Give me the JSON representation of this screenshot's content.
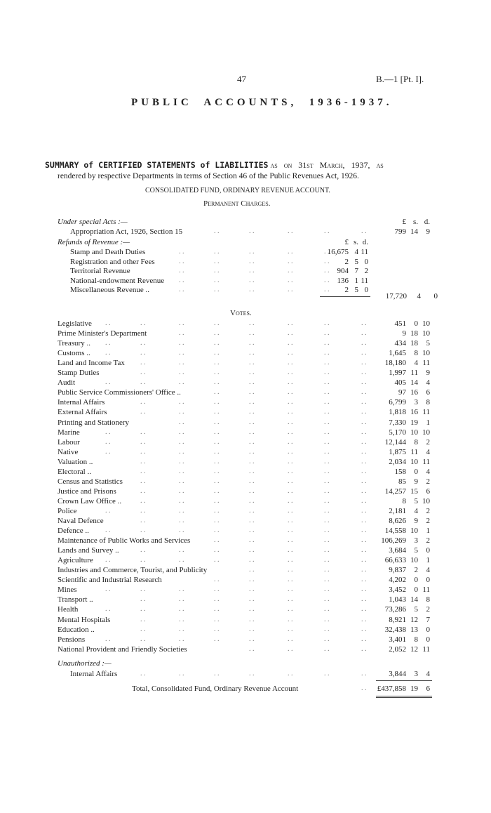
{
  "page_number": "47",
  "ref": "B.—1 [Pt. I].",
  "title": "PUBLIC  ACCOUNTS,  1936-1937.",
  "summary_bold": "SUMMARY of CERTIFIED STATEMENTS of LIABILITIES",
  "summary_rest": "as on 31st March, 1937, as",
  "summary_line2": "rendered by respective Departments in terms of Section 46 of the Public Revenues Act, 1926.",
  "fund_heading": "CONSOLIDATED FUND, ORDINARY REVENUE ACCOUNT.",
  "permanent_heading": "Permanent Charges.",
  "currency_header": {
    "pounds": "£",
    "shillings": "s.",
    "pence": "d."
  },
  "special_acts": {
    "heading": "Under special Acts :—",
    "items": [
      {
        "label": "Appropriation Act, 1926, Section 15",
        "amount": [
          "799",
          "14",
          "9"
        ]
      }
    ]
  },
  "refunds": {
    "heading": "Refunds of Revenue :—",
    "items": [
      {
        "label": "Stamp and Death Duties",
        "amount": [
          "16,675",
          "4",
          "11"
        ]
      },
      {
        "label": "Registration and other Fees",
        "amount": [
          "2",
          "5",
          "0"
        ]
      },
      {
        "label": "Territorial Revenue",
        "amount": [
          "904",
          "7",
          "2"
        ]
      },
      {
        "label": "National-endowment Revenue",
        "amount": [
          "136",
          "1",
          "11"
        ]
      },
      {
        "label": "Miscellaneous Revenue ..",
        "amount": [
          "2",
          "5",
          "0"
        ]
      }
    ],
    "total": [
      "17,720",
      "4",
      "0"
    ]
  },
  "votes": {
    "heading": "Votes.",
    "items": [
      {
        "label": "Legislative",
        "amount": [
          "451",
          "0",
          "10"
        ]
      },
      {
        "label": "Prime Minister's Department",
        "amount": [
          "9",
          "18",
          "10"
        ]
      },
      {
        "label": "Treasury ..",
        "amount": [
          "434",
          "18",
          "5"
        ]
      },
      {
        "label": "Customs ..",
        "amount": [
          "1,645",
          "8",
          "10"
        ]
      },
      {
        "label": "Land and Income Tax",
        "amount": [
          "18,180",
          "4",
          "11"
        ]
      },
      {
        "label": "Stamp Duties",
        "amount": [
          "1,997",
          "11",
          "9"
        ]
      },
      {
        "label": "Audit",
        "amount": [
          "405",
          "14",
          "4"
        ]
      },
      {
        "label": "Public Service Commissioners' Office ..",
        "amount": [
          "97",
          "16",
          "6"
        ]
      },
      {
        "label": "Internal Affairs",
        "amount": [
          "6,799",
          "3",
          "8"
        ]
      },
      {
        "label": "External Affairs",
        "amount": [
          "1,818",
          "16",
          "11"
        ]
      },
      {
        "label": "Printing and Stationery",
        "amount": [
          "7,330",
          "19",
          "1"
        ]
      },
      {
        "label": "Marine",
        "amount": [
          "5,170",
          "10",
          "10"
        ]
      },
      {
        "label": "Labour",
        "amount": [
          "12,144",
          "8",
          "2"
        ]
      },
      {
        "label": "Native",
        "amount": [
          "1,875",
          "11",
          "4"
        ]
      },
      {
        "label": "Valuation ..",
        "amount": [
          "2,034",
          "10",
          "11"
        ]
      },
      {
        "label": "Electoral ..",
        "amount": [
          "158",
          "0",
          "4"
        ]
      },
      {
        "label": "Census and Statistics",
        "amount": [
          "85",
          "9",
          "2"
        ]
      },
      {
        "label": "Justice and Prisons",
        "amount": [
          "14,257",
          "15",
          "6"
        ]
      },
      {
        "label": "Crown Law Office ..",
        "amount": [
          "8",
          "5",
          "10"
        ]
      },
      {
        "label": "Police",
        "amount": [
          "2,181",
          "4",
          "2"
        ]
      },
      {
        "label": "Naval Defence",
        "amount": [
          "8,626",
          "9",
          "2"
        ]
      },
      {
        "label": "Defence ..",
        "amount": [
          "14,558",
          "10",
          "1"
        ]
      },
      {
        "label": "Maintenance of Public Works and Services",
        "amount": [
          "106,269",
          "3",
          "2"
        ]
      },
      {
        "label": "Lands and Survey ..",
        "amount": [
          "3,684",
          "5",
          "0"
        ]
      },
      {
        "label": "Agriculture",
        "amount": [
          "66,633",
          "10",
          "1"
        ]
      },
      {
        "label": "Industries and Commerce, Tourist, and Publicity",
        "amount": [
          "9,837",
          "2",
          "4"
        ]
      },
      {
        "label": "Scientific and Industrial Research",
        "amount": [
          "4,202",
          "0",
          "0"
        ]
      },
      {
        "label": "Mines",
        "amount": [
          "3,452",
          "0",
          "11"
        ]
      },
      {
        "label": "Transport ..",
        "amount": [
          "1,043",
          "14",
          "8"
        ]
      },
      {
        "label": "Health",
        "amount": [
          "73,286",
          "5",
          "2"
        ]
      },
      {
        "label": "Mental Hospitals",
        "amount": [
          "8,921",
          "12",
          "7"
        ]
      },
      {
        "label": "Education ..",
        "amount": [
          "32,438",
          "13",
          "0"
        ]
      },
      {
        "label": "Pensions",
        "amount": [
          "3,401",
          "8",
          "0"
        ]
      },
      {
        "label": "National Provident and Friendly Societies",
        "amount": [
          "2,052",
          "12",
          "11"
        ]
      }
    ]
  },
  "unauthorized": {
    "heading": "Unauthorized :—",
    "items": [
      {
        "label": "Internal Affairs",
        "amount": [
          "3,844",
          "3",
          "4"
        ]
      }
    ]
  },
  "grand_total": {
    "label": "Total, Consolidated Fund, Ordinary Revenue Account",
    "amount": [
      "£437,858",
      "19",
      "6"
    ]
  }
}
